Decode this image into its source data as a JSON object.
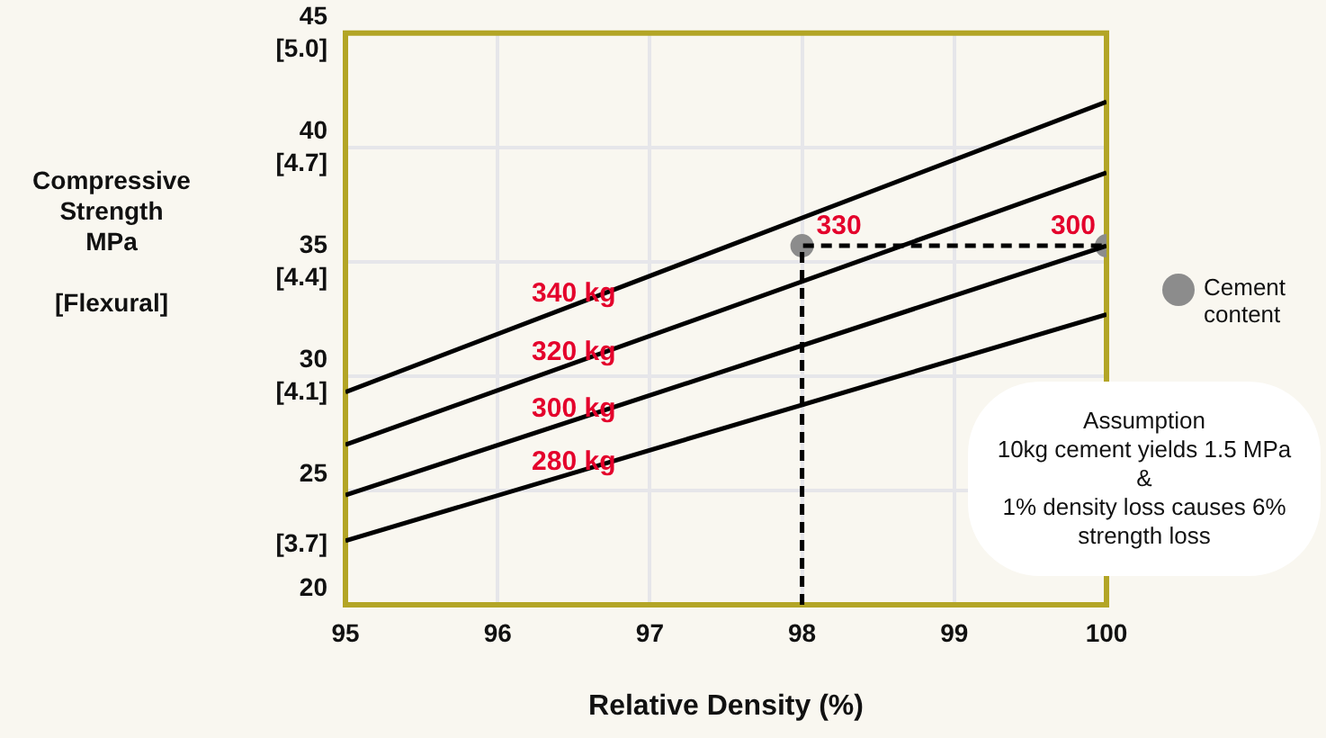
{
  "chart_data": {
    "type": "line",
    "xlabel": "Relative Density (%)",
    "ylabel": "Compressive\nStrength\nMPa\n\n[Flexural]",
    "xlim": [
      95,
      100
    ],
    "xticks": [
      95,
      96,
      97,
      98,
      99,
      100
    ],
    "ylim": [
      20,
      45
    ],
    "yticks": [
      20,
      25,
      30,
      35,
      40,
      45
    ],
    "y2lim": [
      3.5,
      5.0
    ],
    "y2ticks": [
      {
        "value": 3.7,
        "label": "[3.7]"
      },
      {
        "value": 4.1,
        "label": "[4.1]"
      },
      {
        "value": 4.4,
        "label": "[4.4]"
      },
      {
        "value": 4.7,
        "label": "[4.7]"
      },
      {
        "value": 5.0,
        "label": "[5.0]"
      }
    ],
    "grid": true,
    "legend": "right",
    "marker": "none",
    "line_style": "solid",
    "series": [
      {
        "name": "340 kg",
        "color": "#000000",
        "x": [
          95,
          100
        ],
        "values": [
          29.3,
          42.0
        ]
      },
      {
        "name": "320 kg",
        "color": "#000000",
        "x": [
          95,
          100
        ],
        "values": [
          27.0,
          38.9
        ]
      },
      {
        "name": "300 kg",
        "color": "#000000",
        "x": [
          95,
          100
        ],
        "values": [
          24.8,
          35.7
        ]
      },
      {
        "name": "280 kg",
        "color": "#000000",
        "x": [
          95,
          100
        ],
        "values": [
          22.8,
          32.7
        ]
      },
      {
        "type": "line",
        "color": "#000000",
        "line_style": "dashed",
        "x": [
          98,
          98,
          100
        ],
        "values": [
          20,
          35.7,
          35.7
        ]
      },
      {
        "type": "scatter",
        "name": "Cement content",
        "color": "#8c8c8c",
        "marker": "circle",
        "x": [
          98,
          100
        ],
        "values": [
          35.7,
          35.7
        ]
      }
    ],
    "annotations": [
      {
        "text": "330",
        "x": 98,
        "y": 35.7
      },
      {
        "text": "300",
        "x": 100,
        "y": 35.7
      },
      "Assumption\n10kg cement yields 1.5 MPa\n&\n1% density loss causes 6% strength loss"
    ]
  }
}
